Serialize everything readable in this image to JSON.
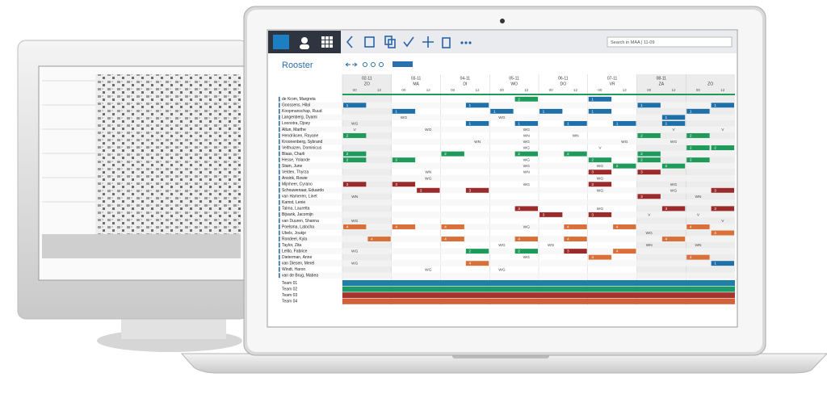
{
  "app": {
    "title": "Rooster",
    "search": "Search in MAA | 11-09",
    "days": [
      {
        "date": "02-11",
        "day": "ZO"
      },
      {
        "date": "03-11",
        "day": "MA"
      },
      {
        "date": "04-11",
        "day": "DI"
      },
      {
        "date": "05-11",
        "day": "WO"
      },
      {
        "date": "06-11",
        "day": "DO"
      },
      {
        "date": "07-11",
        "day": "VR"
      },
      {
        "date": "08-11",
        "day": "ZA"
      },
      {
        "date": null,
        "day": "ZO"
      }
    ],
    "hours": [
      "00",
      "12"
    ],
    "rows": [
      {
        "name": "de Krom, Margreta",
        "cells": [
          null,
          null,
          null,
          null,
          null,
          null,
          null,
          "2",
          null,
          null,
          "1",
          null,
          null,
          null,
          null,
          null
        ]
      },
      {
        "name": "Goossens, Hilal",
        "cells": [
          "1",
          null,
          null,
          null,
          null,
          "1",
          null,
          null,
          null,
          null,
          null,
          null,
          "1",
          null,
          null,
          "1"
        ]
      },
      {
        "name": "Koopmanschap, Ruud",
        "cells": [
          null,
          null,
          "1",
          null,
          null,
          null,
          "1",
          null,
          "1",
          null,
          "1",
          null,
          null,
          null,
          "1",
          null
        ]
      },
      {
        "name": "Langenberg, Dyami",
        "cells": [
          null,
          null,
          "WG",
          null,
          null,
          null,
          "WG",
          null,
          null,
          null,
          null,
          null,
          null,
          "1",
          null,
          null
        ]
      },
      {
        "name": "Loonstra, Djoey",
        "cells": [
          "WG",
          null,
          null,
          null,
          null,
          "1",
          null,
          "1",
          null,
          "1",
          null,
          "1",
          null,
          "1",
          null,
          null
        ]
      },
      {
        "name": "Altun, Marthe",
        "cells": [
          "V",
          null,
          null,
          "WG",
          null,
          null,
          null,
          "WG",
          null,
          null,
          null,
          null,
          null,
          "V",
          null,
          "V"
        ]
      },
      {
        "name": "Hendriksen, Rayane",
        "cells": [
          "2",
          null,
          null,
          null,
          null,
          null,
          null,
          "WN",
          null,
          "WN",
          null,
          null,
          "2",
          null,
          "2",
          null
        ]
      },
      {
        "name": "Kroonenberg, Sybrand",
        "cells": [
          null,
          null,
          null,
          null,
          null,
          "WN",
          null,
          "WG",
          null,
          null,
          null,
          "WG",
          null,
          "WG",
          null,
          null
        ]
      },
      {
        "name": "Velthuizen, Dominicus",
        "cells": [
          null,
          null,
          null,
          null,
          null,
          null,
          null,
          "WG",
          null,
          null,
          "V",
          null,
          null,
          null,
          "2",
          "2"
        ]
      },
      {
        "name": "Blaas, Charli",
        "cells": [
          "2",
          null,
          null,
          null,
          "2",
          null,
          null,
          "2",
          null,
          "2",
          null,
          null,
          "2",
          null,
          null,
          null
        ]
      },
      {
        "name": "Hesse, Yolande",
        "cells": [
          "2",
          null,
          "2",
          null,
          null,
          null,
          null,
          "WG",
          null,
          null,
          "2",
          null,
          "2",
          null,
          "2",
          null
        ]
      },
      {
        "name": "Stam, June",
        "cells": [
          null,
          null,
          null,
          null,
          null,
          null,
          null,
          "WG",
          null,
          null,
          "WG",
          "2",
          null,
          "2",
          null,
          null
        ]
      },
      {
        "name": "Velden, Thyrza",
        "cells": [
          null,
          null,
          null,
          "WN",
          null,
          null,
          null,
          "WN",
          null,
          null,
          "3",
          null,
          "3",
          null,
          null,
          null
        ]
      },
      {
        "name": "Ansink, Rowie",
        "cells": [
          null,
          null,
          null,
          "WG",
          null,
          null,
          null,
          null,
          null,
          null,
          "WG",
          null,
          null,
          null,
          null,
          null
        ]
      },
      {
        "name": "Mijnheer, Cyrano",
        "cells": [
          "3",
          null,
          "3",
          null,
          null,
          null,
          null,
          "WG",
          null,
          null,
          "3",
          null,
          null,
          "WG",
          null,
          null
        ]
      },
      {
        "name": "Schouwenaar, Eduardo",
        "cells": [
          null,
          null,
          null,
          "3",
          null,
          "3",
          null,
          null,
          null,
          null,
          "WG",
          null,
          null,
          "WG",
          null,
          "3"
        ]
      },
      {
        "name": "van Hameren, Linet",
        "cells": [
          "WN",
          null,
          null,
          null,
          null,
          null,
          null,
          null,
          null,
          null,
          null,
          null,
          "3",
          null,
          "WN",
          null
        ]
      },
      {
        "name": "Kamst, Lenie",
        "cells": [
          null,
          null,
          null,
          null,
          null,
          null,
          null,
          null,
          null,
          null,
          null,
          null,
          null,
          null,
          null,
          null
        ]
      },
      {
        "name": "Talma, Lauretta",
        "cells": [
          null,
          null,
          null,
          null,
          null,
          null,
          null,
          "3",
          null,
          null,
          "WG",
          null,
          null,
          "3",
          null,
          "3"
        ]
      },
      {
        "name": "Bijvank, Jacomijn",
        "cells": [
          null,
          null,
          null,
          null,
          null,
          null,
          null,
          null,
          "3",
          null,
          "3",
          null,
          "V",
          null,
          "V",
          null
        ]
      },
      {
        "name": "van Duuren, Shanna",
        "cells": [
          "WG",
          null,
          null,
          null,
          null,
          null,
          null,
          null,
          null,
          null,
          null,
          null,
          null,
          null,
          null,
          "V"
        ]
      },
      {
        "name": "Poelsma, Latocha",
        "cells": [
          "4",
          null,
          "4",
          null,
          "4",
          null,
          null,
          "WG",
          null,
          "4",
          null,
          "4",
          null,
          null,
          "4",
          null
        ]
      },
      {
        "name": "Ubels, Joukje",
        "cells": [
          null,
          null,
          null,
          null,
          null,
          null,
          null,
          null,
          null,
          null,
          null,
          null,
          "WG",
          null,
          null,
          "4"
        ]
      },
      {
        "name": "Rondeel, Kyla",
        "cells": [
          null,
          "4",
          null,
          null,
          "4",
          null,
          null,
          "4",
          null,
          "4",
          null,
          null,
          null,
          "4",
          null,
          null
        ]
      },
      {
        "name": "Taylor, Zita",
        "cells": [
          null,
          null,
          null,
          null,
          null,
          null,
          "WG",
          null,
          "WG",
          null,
          null,
          null,
          "WN",
          null,
          "WN",
          null
        ]
      },
      {
        "name": "Lelito, Fabrice",
        "cells": [
          "WG",
          null,
          null,
          null,
          null,
          "2",
          null,
          "2",
          null,
          "3",
          null,
          "4",
          null,
          null,
          null,
          null
        ]
      },
      {
        "name": "Dieterman, Anne",
        "cells": [
          null,
          null,
          null,
          null,
          null,
          null,
          null,
          "WG",
          null,
          null,
          "4",
          null,
          null,
          null,
          "4",
          null
        ]
      },
      {
        "name": "van Diesen, Merel",
        "cells": [
          "WG",
          null,
          null,
          null,
          null,
          "4",
          null,
          null,
          null,
          null,
          null,
          null,
          null,
          null,
          null,
          "1"
        ]
      },
      {
        "name": "Windt, Haron",
        "cells": [
          null,
          null,
          null,
          "WG",
          null,
          null,
          "WG",
          null,
          null,
          null,
          null,
          null,
          null,
          null,
          null,
          null
        ]
      },
      {
        "name": "van de Brug, Mabea",
        "cells": [
          null,
          null,
          null,
          null,
          null,
          null,
          null,
          null,
          null,
          null,
          null,
          null,
          null,
          null,
          null,
          null
        ]
      }
    ],
    "teams": [
      "Team 01",
      "Team 02",
      "Team 03",
      "Team 04"
    ]
  }
}
